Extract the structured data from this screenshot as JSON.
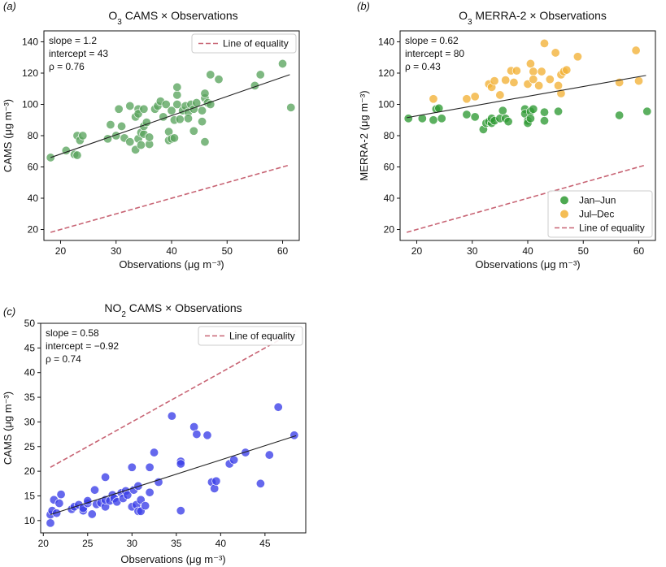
{
  "chart_data": [
    {
      "id": "a",
      "panel_label": "(a)",
      "type": "scatter",
      "title_main": "O",
      "title_sub": "3",
      "title_rest": " CAMS × Observations",
      "xlabel": "Observations (μg m⁻³)",
      "ylabel": "CAMS (μg m⁻³)",
      "xlim": [
        17,
        63
      ],
      "ylim": [
        13,
        147
      ],
      "xticks": [
        20,
        30,
        40,
        50,
        60
      ],
      "yticks": [
        20,
        40,
        60,
        80,
        100,
        120,
        140
      ],
      "stats": [
        "slope = 1.2",
        "intercept = 43",
        "ρ = 0.76"
      ],
      "legend": {
        "position": "top-right",
        "entries": [
          {
            "label": "Line of equality",
            "kind": "dashed",
            "color": "#c86575"
          }
        ]
      },
      "fit_line": {
        "x": [
          18.2,
          61.3
        ],
        "y": [
          66,
          119
        ],
        "color": "#222222"
      },
      "equality_line": {
        "x": [
          18.2,
          61.3
        ],
        "y": [
          18.2,
          61.3
        ],
        "color": "#c86575"
      },
      "series": [
        {
          "name": "CAMS",
          "color": "#5aa45e",
          "points": [
            [
              18.2,
              66
            ],
            [
              21,
              70.5
            ],
            [
              22.5,
              68
            ],
            [
              23,
              80
            ],
            [
              23,
              67.5
            ],
            [
              23.5,
              77
            ],
            [
              24,
              80
            ],
            [
              28.5,
              78
            ],
            [
              29,
              87
            ],
            [
              30,
              80
            ],
            [
              30.5,
              97
            ],
            [
              31,
              86
            ],
            [
              31.5,
              78.5
            ],
            [
              32.5,
              99
            ],
            [
              32.5,
              76
            ],
            [
              33.5,
              71
            ],
            [
              33.5,
              92
            ],
            [
              34,
              97
            ],
            [
              34,
              94
            ],
            [
              34,
              78
            ],
            [
              34.5,
              74
            ],
            [
              34.5,
              82
            ],
            [
              35,
              81
            ],
            [
              35,
              97
            ],
            [
              35,
              86
            ],
            [
              35.5,
              88.5
            ],
            [
              36,
              74.5
            ],
            [
              36,
              79
            ],
            [
              37,
              97
            ],
            [
              37.5,
              99
            ],
            [
              38,
              102
            ],
            [
              38.5,
              92
            ],
            [
              39,
              100
            ],
            [
              39.5,
              82.5
            ],
            [
              39.5,
              77
            ],
            [
              40,
              96
            ],
            [
              40,
              78
            ],
            [
              40.5,
              78.5
            ],
            [
              40.5,
              90
            ],
            [
              41,
              100
            ],
            [
              41,
              106
            ],
            [
              41,
              111
            ],
            [
              41.5,
              90.5
            ],
            [
              42,
              96
            ],
            [
              42.5,
              99
            ],
            [
              43,
              95
            ],
            [
              43,
              91
            ],
            [
              43.5,
              100
            ],
            [
              44,
              97
            ],
            [
              44,
              83
            ],
            [
              44.5,
              101
            ],
            [
              45.5,
              96
            ],
            [
              45.5,
              89
            ],
            [
              46,
              104
            ],
            [
              46,
              76
            ],
            [
              46,
              107
            ],
            [
              46.5,
              101
            ],
            [
              47,
              100
            ],
            [
              47,
              119
            ],
            [
              48.5,
              116
            ],
            [
              55,
              112
            ],
            [
              56,
              119
            ],
            [
              60,
              126
            ],
            [
              61.5,
              98
            ]
          ]
        }
      ]
    },
    {
      "id": "b",
      "panel_label": "(b)",
      "type": "scatter",
      "title_main": "O",
      "title_sub": "3",
      "title_rest": " MERRA-2 × Observations",
      "xlabel": "Observations (μg m⁻³)",
      "ylabel": "MERRA-2 (μg m⁻³)",
      "xlim": [
        17,
        63
      ],
      "ylim": [
        13,
        147
      ],
      "xticks": [
        20,
        30,
        40,
        50,
        60
      ],
      "yticks": [
        20,
        40,
        60,
        80,
        100,
        120,
        140
      ],
      "stats": [
        "slope = 0.62",
        "intercept = 80",
        "ρ = 0.43"
      ],
      "legend": {
        "position": "bottom-right",
        "entries": [
          {
            "label": "Jan–Jun",
            "kind": "marker",
            "color": "#2e9a33"
          },
          {
            "label": "Jul–Dec",
            "kind": "marker",
            "color": "#f2b136"
          },
          {
            "label": "Line of equality",
            "kind": "dashed",
            "color": "#c86575"
          }
        ]
      },
      "fit_line": {
        "x": [
          18.2,
          61.3
        ],
        "y": [
          91.5,
          118.5
        ],
        "color": "#222222"
      },
      "equality_line": {
        "x": [
          18.2,
          61.3
        ],
        "y": [
          18.2,
          61.3
        ],
        "color": "#c86575"
      },
      "series": [
        {
          "name": "Jan–Jun",
          "color": "#2e9a33",
          "points": [
            [
              18.5,
              91
            ],
            [
              21,
              91
            ],
            [
              23,
              90
            ],
            [
              23.5,
              97
            ],
            [
              24,
              97.5
            ],
            [
              24.5,
              91
            ],
            [
              29,
              93.5
            ],
            [
              30.5,
              92
            ],
            [
              32,
              84
            ],
            [
              32.5,
              88
            ],
            [
              33,
              89
            ],
            [
              33.5,
              88
            ],
            [
              33.5,
              91
            ],
            [
              34,
              89.5
            ],
            [
              35,
              91
            ],
            [
              35.5,
              96
            ],
            [
              36,
              91
            ],
            [
              36.5,
              89
            ],
            [
              39.5,
              97
            ],
            [
              39.5,
              94
            ],
            [
              40,
              89.5
            ],
            [
              40,
              88
            ],
            [
              40.5,
              95.5
            ],
            [
              40.5,
              91
            ],
            [
              41,
              97
            ],
            [
              43,
              95
            ],
            [
              43,
              89.5
            ],
            [
              45.5,
              95.5
            ],
            [
              56.5,
              93
            ],
            [
              61.5,
              95.5
            ]
          ]
        },
        {
          "name": "Jul–Dec",
          "color": "#f2b136",
          "points": [
            [
              23,
              103.5
            ],
            [
              29,
              103.5
            ],
            [
              30.5,
              105
            ],
            [
              33,
              113
            ],
            [
              33.5,
              111
            ],
            [
              34,
              115
            ],
            [
              35,
              106
            ],
            [
              36,
              115.5
            ],
            [
              37,
              121.5
            ],
            [
              37.5,
              114
            ],
            [
              38,
              121.5
            ],
            [
              40,
              113
            ],
            [
              40.5,
              126
            ],
            [
              41,
              121
            ],
            [
              41,
              116
            ],
            [
              42,
              112
            ],
            [
              42.5,
              121
            ],
            [
              43,
              139
            ],
            [
              44,
              116
            ],
            [
              45,
              133
            ],
            [
              45.5,
              112
            ],
            [
              46,
              119
            ],
            [
              46,
              107
            ],
            [
              46.5,
              121
            ],
            [
              47,
              122
            ],
            [
              49,
              130.5
            ],
            [
              59.5,
              134.5
            ],
            [
              56.5,
              114
            ],
            [
              60,
              115
            ]
          ]
        }
      ]
    },
    {
      "id": "c",
      "panel_label": "(c)",
      "type": "scatter",
      "title_main": "NO",
      "title_sub": "2",
      "title_rest": " CAMS × Observations",
      "xlabel": "Observations (μg m⁻³)",
      "ylabel": "CAMS (μg m⁻³)",
      "xlim": [
        19.7,
        49.6
      ],
      "ylim": [
        7.5,
        50
      ],
      "xticks": [
        20,
        25,
        30,
        35,
        40,
        45
      ],
      "yticks": [
        10,
        15,
        20,
        25,
        30,
        35,
        40,
        45,
        50
      ],
      "stats": [
        "slope = 0.58",
        "intercept = −0.92",
        "ρ = 0.74"
      ],
      "legend": {
        "position": "top-right",
        "entries": [
          {
            "label": "Line of equality",
            "kind": "dashed",
            "color": "#c86575"
          }
        ]
      },
      "fit_line": {
        "x": [
          20.8,
          48.5
        ],
        "y": [
          11.2,
          27.2
        ],
        "color": "#222222"
      },
      "equality_line": {
        "x": [
          20.8,
          48.5
        ],
        "y": [
          20.8,
          48.5
        ],
        "color": "#c86575"
      },
      "series": [
        {
          "name": "NO2 CAMS",
          "color": "#3a3de8",
          "points": [
            [
              20.8,
              9.5
            ],
            [
              20.8,
              11.2
            ],
            [
              21,
              12
            ],
            [
              21.2,
              14.2
            ],
            [
              21.5,
              11.5
            ],
            [
              21.8,
              13.5
            ],
            [
              22,
              15.3
            ],
            [
              23.2,
              12.3
            ],
            [
              23.5,
              12.8
            ],
            [
              24,
              13.2
            ],
            [
              24.5,
              12
            ],
            [
              24.5,
              12.5
            ],
            [
              25,
              13.5
            ],
            [
              25,
              14
            ],
            [
              25.5,
              11.3
            ],
            [
              25.8,
              16.2
            ],
            [
              26,
              13.3
            ],
            [
              26.5,
              13.6
            ],
            [
              27,
              12.8
            ],
            [
              27,
              14.2
            ],
            [
              27,
              18.8
            ],
            [
              27.5,
              14
            ],
            [
              27.8,
              15.2
            ],
            [
              28,
              14.5
            ],
            [
              28.3,
              13.8
            ],
            [
              28.8,
              15.6
            ],
            [
              29,
              14.5
            ],
            [
              29.3,
              16
            ],
            [
              29.5,
              15.2
            ],
            [
              30,
              12.8
            ],
            [
              30,
              20.8
            ],
            [
              30.2,
              16.2
            ],
            [
              30.5,
              13.2
            ],
            [
              30.7,
              17
            ],
            [
              30.7,
              11.9
            ],
            [
              31,
              11.9
            ],
            [
              31,
              14.2
            ],
            [
              31.5,
              13
            ],
            [
              32,
              15.7
            ],
            [
              32,
              20.8
            ],
            [
              32.5,
              23.8
            ],
            [
              33,
              17.8
            ],
            [
              34.5,
              31.2
            ],
            [
              35.5,
              22
            ],
            [
              35.5,
              12
            ],
            [
              35.5,
              21.5
            ],
            [
              37,
              29
            ],
            [
              37.3,
              27.5
            ],
            [
              38.5,
              27.3
            ],
            [
              39,
              17.8
            ],
            [
              39.3,
              16.5
            ],
            [
              39.5,
              18
            ],
            [
              41,
              21.5
            ],
            [
              41.5,
              22.3
            ],
            [
              42.8,
              23.8
            ],
            [
              44.5,
              17.5
            ],
            [
              45.5,
              23.3
            ],
            [
              46.5,
              33
            ],
            [
              48.3,
              27.3
            ]
          ]
        }
      ]
    }
  ]
}
